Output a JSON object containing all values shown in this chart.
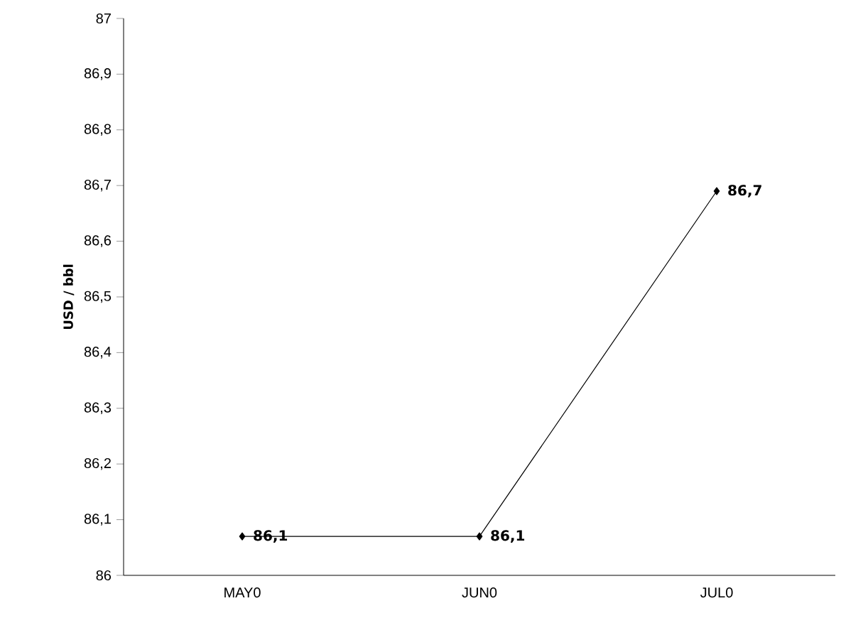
{
  "chart_data": {
    "type": "line",
    "ylabel": "USD / bbl",
    "categories": [
      "MAY0",
      "JUN0",
      "JUL0"
    ],
    "series": [
      {
        "color": "#000000",
        "values": [
          86.07,
          86.07,
          86.69
        ],
        "value_labels": [
          "86,1",
          "86,1",
          "86,7"
        ]
      }
    ],
    "ylim": [
      86,
      87
    ],
    "yticks": [
      86,
      {
        "value": 86.1,
        "label": "86,1"
      },
      {
        "value": 86.2,
        "label": "86,2"
      },
      {
        "value": 86.3,
        "label": "86,3"
      },
      {
        "value": 86.4,
        "label": "86,4"
      },
      {
        "value": 86.5,
        "label": "86,5"
      },
      {
        "value": 86.6,
        "label": "86,6"
      },
      {
        "value": 86.7,
        "label": "86,7"
      },
      {
        "value": 86.8,
        "label": "86,8"
      },
      {
        "value": 86.9,
        "label": "86,9"
      },
      87
    ],
    "marker": "diamond",
    "line_style": "solid"
  }
}
